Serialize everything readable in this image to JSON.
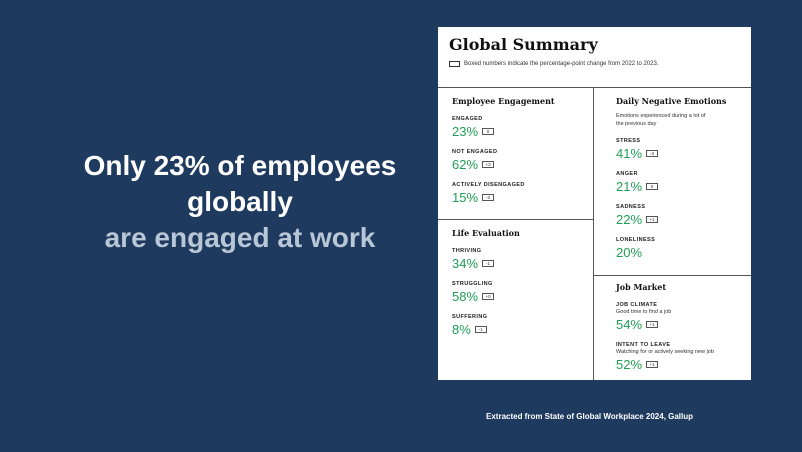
{
  "headline": {
    "line1": "Only 23% of employees",
    "line2": "globally",
    "line3": "are engaged at work"
  },
  "footnote": "Extracted from State of Global Workplace 2024, Gallup",
  "card": {
    "title": "Global Summary",
    "legend": "Boxed numbers indicate the percentage-point change from 2022 to 2023.",
    "engagement": {
      "title": "Employee Engagement",
      "items": [
        {
          "label": "ENGAGED",
          "value": "23%",
          "change": "0"
        },
        {
          "label": "NOT ENGAGED",
          "value": "62%",
          "change": "+3"
        },
        {
          "label": "ACTIVELY DISENGAGED",
          "value": "15%",
          "change": "-3"
        }
      ]
    },
    "negative": {
      "title": "Daily Negative Emotions",
      "subtitle": "Emotions experienced during a lot of the previous day",
      "items": [
        {
          "label": "STRESS",
          "value": "41%",
          "change": "-3"
        },
        {
          "label": "ANGER",
          "value": "21%",
          "change": "0"
        },
        {
          "label": "SADNESS",
          "value": "22%",
          "change": "+1"
        },
        {
          "label": "LONELINESS",
          "value": "20%",
          "change": ""
        }
      ]
    },
    "life": {
      "title": "Life Evaluation",
      "items": [
        {
          "label": "THRIVING",
          "value": "34%",
          "change": "-1"
        },
        {
          "label": "STRUGGLING",
          "value": "58%",
          "change": "+0"
        },
        {
          "label": "SUFFERING",
          "value": "8%",
          "change": "-1"
        }
      ]
    },
    "job": {
      "title": "Job Market",
      "items": [
        {
          "label": "JOB CLIMATE",
          "sub": "Good time to find a job",
          "value": "54%",
          "change": "+1"
        },
        {
          "label": "INTENT TO LEAVE",
          "sub": "Watching for or actively seeking new job",
          "value": "52%",
          "change": "+1"
        }
      ]
    }
  }
}
